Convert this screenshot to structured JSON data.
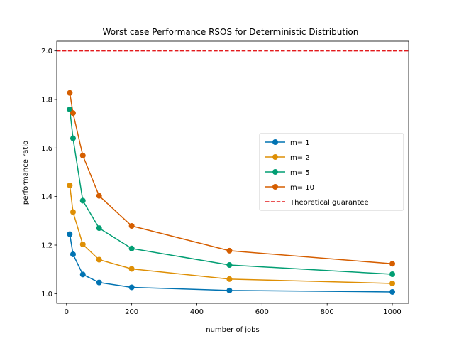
{
  "chart_data": {
    "type": "line",
    "title": "Worst case Performance RSOS for Deterministic Distribution",
    "xlabel": "number of jobs",
    "ylabel": "performance ratio",
    "xlim": [
      -30,
      1050
    ],
    "ylim": [
      0.96,
      2.04
    ],
    "xticks": [
      0,
      200,
      400,
      600,
      800,
      1000
    ],
    "yticks": [
      1.0,
      1.2,
      1.4,
      1.6,
      1.8,
      2.0
    ],
    "x": [
      10,
      20,
      50,
      100,
      200,
      500,
      1000
    ],
    "series": [
      {
        "name": "m= 1",
        "color": "#0173b2",
        "values": [
          1.245,
          1.162,
          1.079,
          1.046,
          1.026,
          1.013,
          1.007
        ]
      },
      {
        "name": "m= 2",
        "color": "#de8f05",
        "values": [
          1.446,
          1.336,
          1.203,
          1.14,
          1.102,
          1.06,
          1.042
        ]
      },
      {
        "name": "m= 5",
        "color": "#029e73",
        "values": [
          1.759,
          1.64,
          1.383,
          1.27,
          1.186,
          1.118,
          1.08
        ]
      },
      {
        "name": "m= 10",
        "color": "#d55e00",
        "values": [
          1.827,
          1.744,
          1.569,
          1.403,
          1.279,
          1.177,
          1.123
        ]
      }
    ],
    "reference_line": {
      "name": "Theoretical guarantee",
      "value": 2.0,
      "color": "#e31a1c",
      "style": "dashed"
    },
    "grid": false,
    "legend_position": "center-right"
  }
}
